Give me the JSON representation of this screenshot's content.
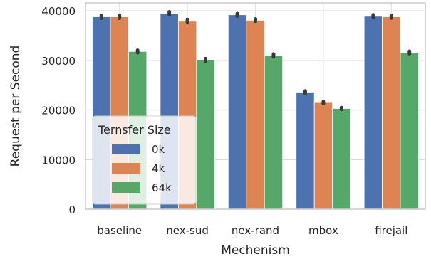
{
  "chart_data": {
    "type": "bar",
    "categories": [
      "baseline",
      "nex-sud",
      "nex-rand",
      "mbox",
      "firejail"
    ],
    "series": [
      {
        "name": "0k",
        "values": [
          38800,
          39500,
          39200,
          23600,
          38900
        ],
        "errors": [
          300,
          300,
          250,
          250,
          300
        ],
        "color": "#4c72b0"
      },
      {
        "name": "4k",
        "values": [
          38800,
          37900,
          38100,
          21500,
          38800
        ],
        "errors": [
          300,
          300,
          250,
          200,
          250
        ],
        "color": "#dd8452"
      },
      {
        "name": "64k",
        "values": [
          31800,
          30100,
          31000,
          20300,
          31600
        ],
        "errors": [
          250,
          250,
          300,
          200,
          250
        ],
        "color": "#55a868"
      }
    ],
    "xlabel": "Mechenism",
    "ylabel": "Request per Second",
    "ylim": [
      0,
      40000
    ],
    "yticks": [
      0,
      10000,
      20000,
      30000,
      40000
    ],
    "grid": true,
    "legend": {
      "title": "Ternsfer Size",
      "placement": "lower-left"
    }
  }
}
